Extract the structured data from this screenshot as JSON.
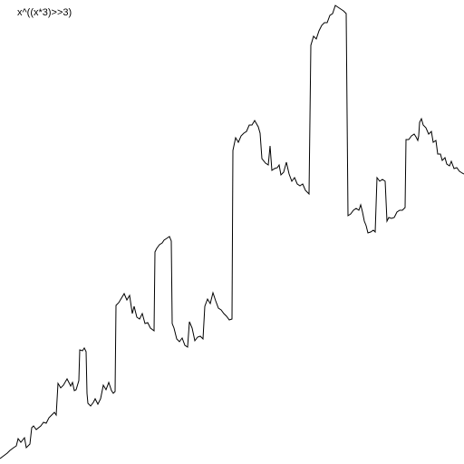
{
  "chart_data": {
    "type": "line",
    "title": "x^((x*3)>>3)",
    "grid": false,
    "stroke_color": "#000000",
    "background_color": "#ffffff",
    "series": [
      {
        "points": [
          [
            0,
            506
          ],
          [
            4,
            503
          ],
          [
            8,
            500
          ],
          [
            11,
            497
          ],
          [
            15,
            494
          ],
          [
            18,
            492
          ],
          [
            20,
            484
          ],
          [
            23,
            488
          ],
          [
            27,
            483
          ],
          [
            29,
            494
          ],
          [
            33,
            490
          ],
          [
            35,
            472
          ],
          [
            37,
            470
          ],
          [
            40,
            474
          ],
          [
            45,
            470
          ],
          [
            48,
            466
          ],
          [
            51,
            467
          ],
          [
            54,
            461
          ],
          [
            57,
            458
          ],
          [
            60,
            455
          ],
          [
            62,
            458
          ],
          [
            64,
            423
          ],
          [
            67,
            428
          ],
          [
            70,
            425
          ],
          [
            74,
            418
          ],
          [
            78,
            426
          ],
          [
            80,
            422
          ],
          [
            82,
            431
          ],
          [
            84,
            430
          ],
          [
            87,
            420
          ],
          [
            88,
            386
          ],
          [
            91,
            387
          ],
          [
            93,
            384
          ],
          [
            95,
            388
          ],
          [
            96,
            434
          ],
          [
            97,
            445
          ],
          [
            100,
            448
          ],
          [
            103,
            444
          ],
          [
            105,
            440
          ],
          [
            108,
            446
          ],
          [
            111,
            440
          ],
          [
            114,
            425
          ],
          [
            117,
            430
          ],
          [
            120,
            422
          ],
          [
            123,
            431
          ],
          [
            125,
            434
          ],
          [
            127,
            432
          ],
          [
            128,
            337
          ],
          [
            131,
            334
          ],
          [
            134,
            329
          ],
          [
            137,
            324
          ],
          [
            140,
            331
          ],
          [
            143,
            326
          ],
          [
            146,
            346
          ],
          [
            148,
            338
          ],
          [
            151,
            350
          ],
          [
            154,
            352
          ],
          [
            157,
            346
          ],
          [
            160,
            357
          ],
          [
            163,
            356
          ],
          [
            166,
            362
          ],
          [
            170,
            365
          ],
          [
            171,
            278
          ],
          [
            173,
            274
          ],
          [
            176,
            270
          ],
          [
            179,
            268
          ],
          [
            181,
            265
          ],
          [
            184,
            263
          ],
          [
            187,
            261
          ],
          [
            189,
            266
          ],
          [
            190,
            357
          ],
          [
            192,
            362
          ],
          [
            195,
            374
          ],
          [
            198,
            377
          ],
          [
            201,
            373
          ],
          [
            204,
            381
          ],
          [
            207,
            383
          ],
          [
            209,
            355
          ],
          [
            212,
            362
          ],
          [
            215,
            376
          ],
          [
            218,
            372
          ],
          [
            221,
            371
          ],
          [
            224,
            374
          ],
          [
            226,
            338
          ],
          [
            229,
            330
          ],
          [
            232,
            335
          ],
          [
            235,
            323
          ],
          [
            238,
            332
          ],
          [
            241,
            340
          ],
          [
            244,
            342
          ],
          [
            247,
            346
          ],
          [
            250,
            349
          ],
          [
            253,
            353
          ],
          [
            256,
            352
          ],
          [
            257,
            166
          ],
          [
            260,
            152
          ],
          [
            263,
            157
          ],
          [
            266,
            150
          ],
          [
            269,
            147
          ],
          [
            272,
            145
          ],
          [
            275,
            138
          ],
          [
            278,
            138
          ],
          [
            281,
            133
          ],
          [
            285,
            140
          ],
          [
            287,
            147
          ],
          [
            289,
            175
          ],
          [
            293,
            180
          ],
          [
            296,
            182
          ],
          [
            298,
            161
          ],
          [
            300,
            188
          ],
          [
            303,
            186
          ],
          [
            306,
            185
          ],
          [
            308,
            182
          ],
          [
            310,
            193
          ],
          [
            313,
            190
          ],
          [
            316,
            179
          ],
          [
            319,
            192
          ],
          [
            322,
            200
          ],
          [
            325,
            196
          ],
          [
            328,
            203
          ],
          [
            331,
            205
          ],
          [
            334,
            203
          ],
          [
            337,
            210
          ],
          [
            341,
            214
          ],
          [
            343,
            50
          ],
          [
            346,
            40
          ],
          [
            349,
            43
          ],
          [
            352,
            34
          ],
          [
            355,
            28
          ],
          [
            358,
            25
          ],
          [
            361,
            25
          ],
          [
            364,
            17
          ],
          [
            367,
            15
          ],
          [
            370,
            6
          ],
          [
            373,
            8
          ],
          [
            376,
            10
          ],
          [
            379,
            12
          ],
          [
            382,
            15
          ],
          [
            384,
            238
          ],
          [
            387,
            236
          ],
          [
            390,
            232
          ],
          [
            393,
            230
          ],
          [
            396,
            232
          ],
          [
            398,
            226
          ],
          [
            400,
            234
          ],
          [
            402,
            244
          ],
          [
            404,
            249
          ],
          [
            406,
            257
          ],
          [
            409,
            256
          ],
          [
            412,
            254
          ],
          [
            414,
            256
          ],
          [
            416,
            196
          ],
          [
            419,
            200
          ],
          [
            422,
            198
          ],
          [
            425,
            200
          ],
          [
            427,
            244
          ],
          [
            429,
            240
          ],
          [
            432,
            241
          ],
          [
            435,
            240
          ],
          [
            438,
            234
          ],
          [
            441,
            232
          ],
          [
            444,
            232
          ],
          [
            447,
            229
          ],
          [
            448,
            154
          ],
          [
            451,
            154
          ],
          [
            454,
            150
          ],
          [
            457,
            148
          ],
          [
            459,
            151
          ],
          [
            461,
            155
          ],
          [
            462,
            150
          ],
          [
            463,
            135
          ],
          [
            465,
            131
          ],
          [
            467,
            138
          ],
          [
            470,
            141
          ],
          [
            473,
            148
          ],
          [
            476,
            145
          ],
          [
            478,
            157
          ],
          [
            481,
            155
          ],
          [
            483,
            170
          ],
          [
            486,
            170
          ],
          [
            488,
            177
          ],
          [
            491,
            174
          ],
          [
            493,
            181
          ],
          [
            496,
            183
          ],
          [
            498,
            178
          ],
          [
            501,
            186
          ],
          [
            504,
            185
          ],
          [
            507,
            189
          ],
          [
            510,
            191
          ],
          [
            512,
            192
          ]
        ]
      }
    ]
  }
}
